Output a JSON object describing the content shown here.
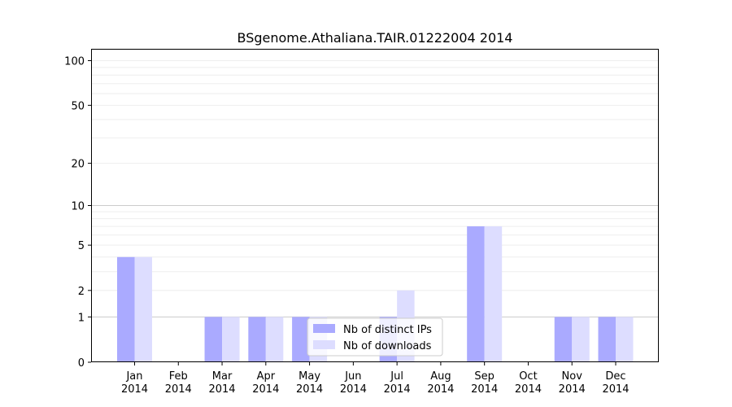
{
  "chart_data": {
    "type": "bar",
    "title": "BSgenome.Athaliana.TAIR.01222004 2014",
    "xlabel": "",
    "ylabel": "",
    "y_scale": "log1p",
    "ylim": [
      0,
      120
    ],
    "y_ticks": [
      0,
      1,
      2,
      5,
      10,
      20,
      50,
      100
    ],
    "grid": true,
    "legend_position": "lower center",
    "categories": [
      "Jan\n2014",
      "Feb\n2014",
      "Mar\n2014",
      "Apr\n2014",
      "May\n2014",
      "Jun\n2014",
      "Jul\n2014",
      "Aug\n2014",
      "Sep\n2014",
      "Oct\n2014",
      "Nov\n2014",
      "Dec\n2014"
    ],
    "series": [
      {
        "name": "Nb of distinct IPs",
        "color": "#aaaaff",
        "values": [
          4,
          0,
          1,
          1,
          1,
          0,
          1,
          0,
          7,
          0,
          1,
          1
        ]
      },
      {
        "name": "Nb of downloads",
        "color": "#ddddff",
        "values": [
          4,
          0,
          1,
          1,
          1,
          0,
          2,
          0,
          7,
          0,
          1,
          1
        ]
      }
    ]
  }
}
